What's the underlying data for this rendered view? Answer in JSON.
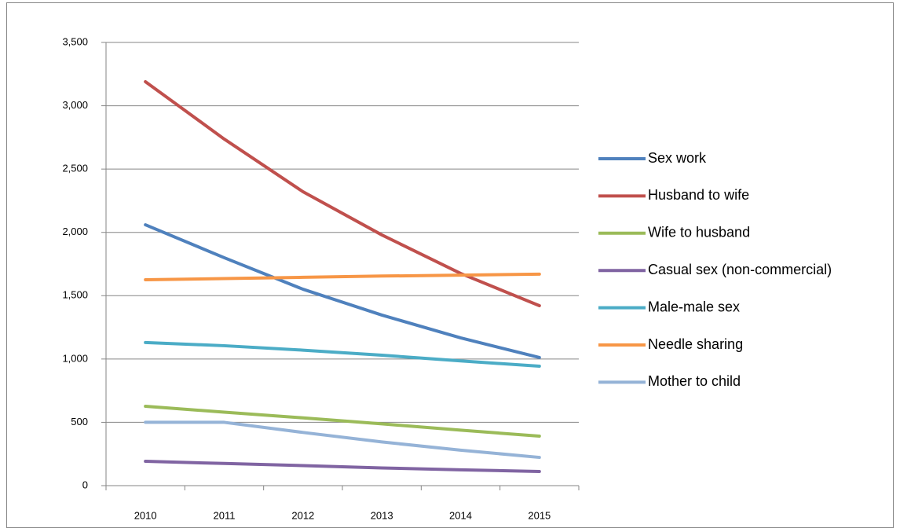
{
  "chart_data": {
    "type": "line",
    "categories": [
      "2010",
      "2011",
      "2012",
      "2013",
      "2014",
      "2015"
    ],
    "series": [
      {
        "name": "Sex work",
        "color": "#4f81bd",
        "values": [
          2060,
          1800,
          1551,
          1347,
          1167,
          1012
        ]
      },
      {
        "name": "Husband to wife",
        "color": "#c0504d",
        "values": [
          3190,
          2737,
          2321,
          1980,
          1676,
          1421
        ]
      },
      {
        "name": "Wife to husband",
        "color": "#9bbb59",
        "values": [
          627,
          580,
          535,
          488,
          438,
          391
        ]
      },
      {
        "name": "Casual sex (non-commercial)",
        "color": "#8064a2",
        "values": [
          192,
          175,
          158,
          140,
          125,
          112
        ]
      },
      {
        "name": "Male-male sex",
        "color": "#4bacc6",
        "values": [
          1130,
          1105,
          1070,
          1030,
          985,
          943
        ]
      },
      {
        "name": "Needle sharing",
        "color": "#f79646",
        "values": [
          1626,
          1635,
          1645,
          1655,
          1662,
          1670
        ]
      },
      {
        "name": "Mother to child",
        "color": "#95b3d7",
        "values": [
          500,
          500,
          420,
          345,
          280,
          223
        ]
      }
    ],
    "ylim": [
      0,
      3500
    ],
    "yticks": [
      0,
      500,
      {
        "value": 1000,
        "label": "1,000"
      },
      {
        "value": 1500,
        "label": "1,500"
      },
      {
        "value": 2000,
        "label": "2,000"
      },
      {
        "value": 2500,
        "label": "2,500"
      },
      {
        "value": 3000,
        "label": "3,000"
      },
      {
        "value": 3500,
        "label": "3,500"
      }
    ],
    "grid": true,
    "legend": "right"
  }
}
